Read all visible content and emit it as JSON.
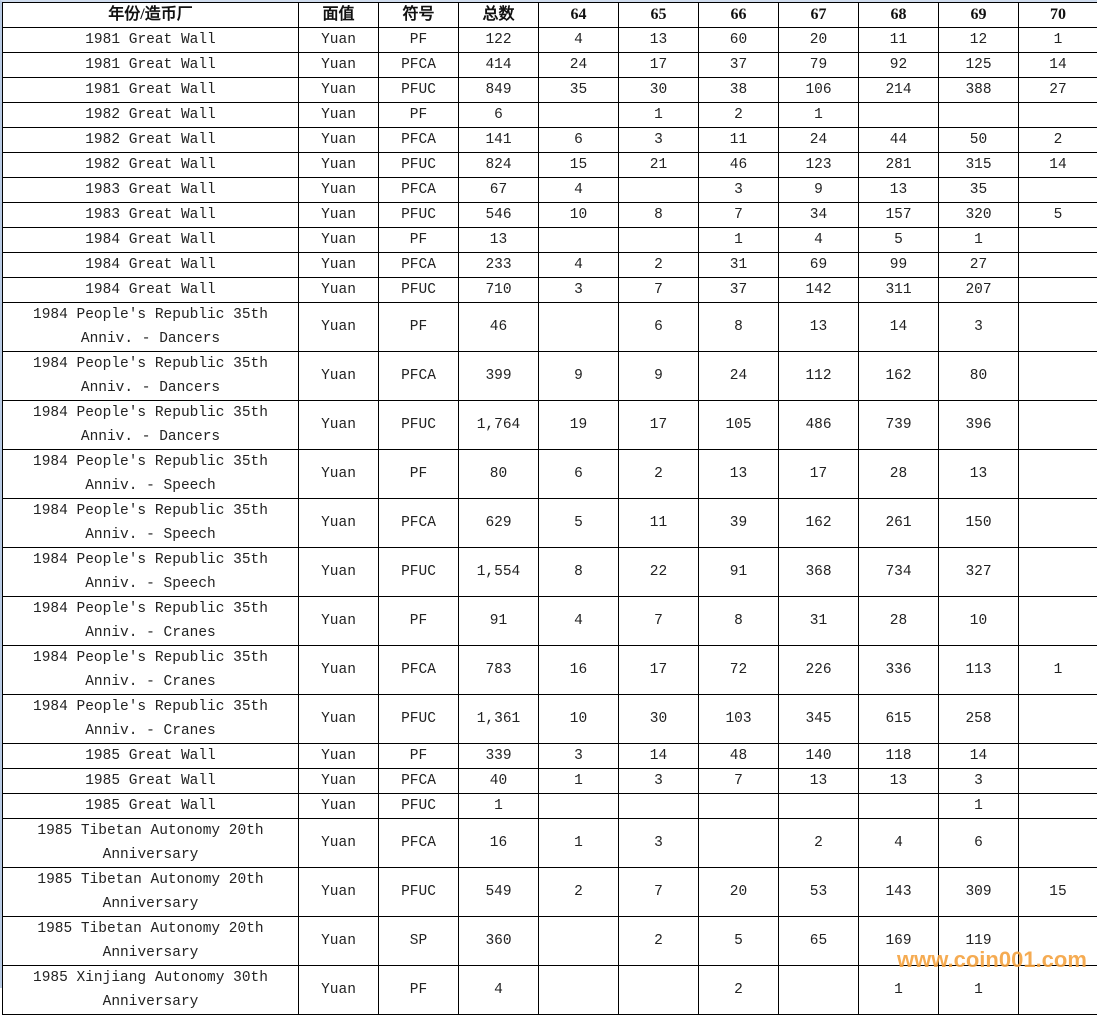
{
  "columns": [
    "年份/造币厂",
    "面值",
    "符号",
    "总数",
    "64",
    "65",
    "66",
    "67",
    "68",
    "69",
    "70"
  ],
  "rows": [
    [
      "1981 Great Wall",
      "Yuan",
      "PF",
      "122",
      "4",
      "13",
      "60",
      "20",
      "11",
      "12",
      "1"
    ],
    [
      "1981 Great Wall",
      "Yuan",
      "PFCA",
      "414",
      "24",
      "17",
      "37",
      "79",
      "92",
      "125",
      "14"
    ],
    [
      "1981 Great Wall",
      "Yuan",
      "PFUC",
      "849",
      "35",
      "30",
      "38",
      "106",
      "214",
      "388",
      "27"
    ],
    [
      "1982 Great Wall",
      "Yuan",
      "PF",
      "6",
      "",
      "1",
      "2",
      "1",
      "",
      "",
      ""
    ],
    [
      "1982 Great Wall",
      "Yuan",
      "PFCA",
      "141",
      "6",
      "3",
      "11",
      "24",
      "44",
      "50",
      "2"
    ],
    [
      "1982 Great Wall",
      "Yuan",
      "PFUC",
      "824",
      "15",
      "21",
      "46",
      "123",
      "281",
      "315",
      "14"
    ],
    [
      "1983 Great Wall",
      "Yuan",
      "PFCA",
      "67",
      "4",
      "",
      "3",
      "9",
      "13",
      "35",
      ""
    ],
    [
      "1983 Great Wall",
      "Yuan",
      "PFUC",
      "546",
      "10",
      "8",
      "7",
      "34",
      "157",
      "320",
      "5"
    ],
    [
      "1984 Great Wall",
      "Yuan",
      "PF",
      "13",
      "",
      "",
      "1",
      "4",
      "5",
      "1",
      ""
    ],
    [
      "1984 Great Wall",
      "Yuan",
      "PFCA",
      "233",
      "4",
      "2",
      "31",
      "69",
      "99",
      "27",
      ""
    ],
    [
      "1984 Great Wall",
      "Yuan",
      "PFUC",
      "710",
      "3",
      "7",
      "37",
      "142",
      "311",
      "207",
      ""
    ],
    [
      "1984 People's Republic 35th Anniv. - Dancers",
      "Yuan",
      "PF",
      "46",
      "",
      "6",
      "8",
      "13",
      "14",
      "3",
      ""
    ],
    [
      "1984 People's Republic 35th Anniv. - Dancers",
      "Yuan",
      "PFCA",
      "399",
      "9",
      "9",
      "24",
      "112",
      "162",
      "80",
      ""
    ],
    [
      "1984 People's Republic 35th Anniv. - Dancers",
      "Yuan",
      "PFUC",
      "1,764",
      "19",
      "17",
      "105",
      "486",
      "739",
      "396",
      ""
    ],
    [
      "1984 People's Republic 35th Anniv. - Speech",
      "Yuan",
      "PF",
      "80",
      "6",
      "2",
      "13",
      "17",
      "28",
      "13",
      ""
    ],
    [
      "1984 People's Republic 35th Anniv. - Speech",
      "Yuan",
      "PFCA",
      "629",
      "5",
      "11",
      "39",
      "162",
      "261",
      "150",
      ""
    ],
    [
      "1984 People's Republic 35th Anniv. - Speech",
      "Yuan",
      "PFUC",
      "1,554",
      "8",
      "22",
      "91",
      "368",
      "734",
      "327",
      ""
    ],
    [
      "1984 People's Republic 35th Anniv. - Cranes",
      "Yuan",
      "PF",
      "91",
      "4",
      "7",
      "8",
      "31",
      "28",
      "10",
      ""
    ],
    [
      "1984 People's Republic 35th Anniv. - Cranes",
      "Yuan",
      "PFCA",
      "783",
      "16",
      "17",
      "72",
      "226",
      "336",
      "113",
      "1"
    ],
    [
      "1984 People's Republic 35th Anniv. - Cranes",
      "Yuan",
      "PFUC",
      "1,361",
      "10",
      "30",
      "103",
      "345",
      "615",
      "258",
      ""
    ],
    [
      "1985 Great Wall",
      "Yuan",
      "PF",
      "339",
      "3",
      "14",
      "48",
      "140",
      "118",
      "14",
      ""
    ],
    [
      "1985 Great Wall",
      "Yuan",
      "PFCA",
      "40",
      "1",
      "3",
      "7",
      "13",
      "13",
      "3",
      ""
    ],
    [
      "1985 Great Wall",
      "Yuan",
      "PFUC",
      "1",
      "",
      "",
      "",
      "",
      "",
      "1",
      ""
    ],
    [
      "1985 Tibetan Autonomy 20th Anniversary",
      "Yuan",
      "PFCA",
      "16",
      "1",
      "3",
      "",
      "2",
      "4",
      "6",
      ""
    ],
    [
      "1985 Tibetan Autonomy 20th Anniversary",
      "Yuan",
      "PFUC",
      "549",
      "2",
      "7",
      "20",
      "53",
      "143",
      "309",
      "15"
    ],
    [
      "1985 Tibetan Autonomy 20th Anniversary",
      "Yuan",
      "SP",
      "360",
      "",
      "2",
      "5",
      "65",
      "169",
      "119",
      ""
    ],
    [
      "1985 Xinjiang Autonomy 30th Anniversary",
      "Yuan",
      "PF",
      "4",
      "",
      "",
      "2",
      "",
      "1",
      "1",
      ""
    ]
  ],
  "watermark": "www.coin001.com"
}
